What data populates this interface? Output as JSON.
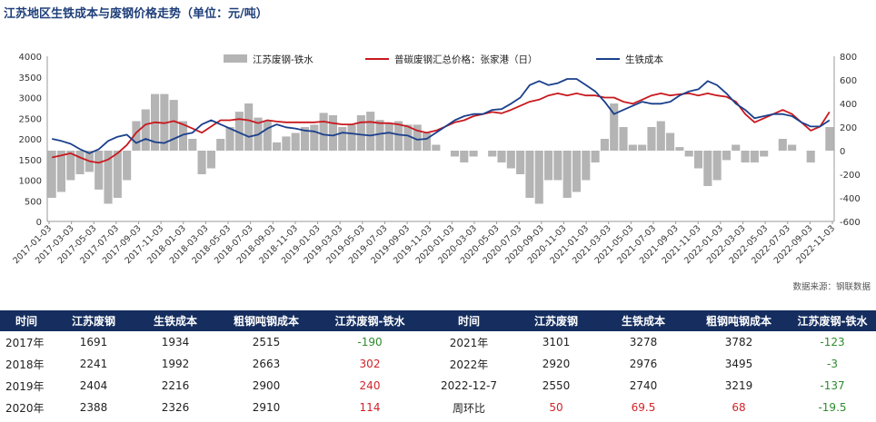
{
  "title": "江苏地区生铁成本与废钢价格走势（单位：元/吨）",
  "source": "数据来源：钢联数据",
  "chart_data": {
    "type": "line",
    "legend": [
      "江苏废钢-铁水",
      "普碳废钢汇总价格：张家港（日）",
      "生铁成本"
    ],
    "colors": {
      "bar": "#b4b4b4",
      "scrap": "#c8191e",
      "pigiron": "#1a3f8c"
    },
    "ylim_left": [
      0,
      4000
    ],
    "yticks_left": [
      "0",
      "500",
      "1000",
      "1500",
      "2000",
      "2500",
      "3000",
      "3500",
      "4000"
    ],
    "ylim_right": [
      -600,
      800
    ],
    "yticks_right": [
      "-600",
      "-400",
      "-200",
      "0",
      "200",
      "400",
      "600",
      "800"
    ],
    "xticks": [
      "2017-01-03",
      "2017-03-03",
      "2017-05-03",
      "2017-07-03",
      "2017-09-03",
      "2017-11-03",
      "2018-01-03",
      "2018-03-03",
      "2018-05-03",
      "2018-07-03",
      "2018-09-03",
      "2018-11-03",
      "2019-01-03",
      "2019-03-03",
      "2019-05-03",
      "2019-07-03",
      "2019-09-03",
      "2019-11-03",
      "2020-01-03",
      "2020-03-03",
      "2020-05-03",
      "2020-07-03",
      "2020-09-03",
      "2020-11-03",
      "2021-01-03",
      "2021-03-03",
      "2021-05-03",
      "2021-07-03",
      "2021-09-03",
      "2021-11-03",
      "2022-01-03",
      "2022-03-03",
      "2022-05-03",
      "2022-07-03",
      "2022-09-03",
      "2022-11-03"
    ],
    "series": [
      {
        "name": "普碳废钢汇总价格：张家港（日）",
        "axis": "left",
        "values": [
          1550,
          1600,
          1650,
          1550,
          1460,
          1420,
          1500,
          1650,
          1850,
          2150,
          2350,
          2400,
          2380,
          2430,
          2350,
          2250,
          2150,
          2300,
          2450,
          2450,
          2480,
          2450,
          2380,
          2450,
          2420,
          2400,
          2400,
          2400,
          2400,
          2420,
          2380,
          2350,
          2350,
          2400,
          2410,
          2380,
          2380,
          2350,
          2300,
          2200,
          2150,
          2200,
          2300,
          2400,
          2450,
          2550,
          2600,
          2650,
          2620,
          2700,
          2800,
          2900,
          2950,
          3050,
          3100,
          3050,
          3100,
          3050,
          3050,
          3000,
          3000,
          2900,
          2850,
          2950,
          3050,
          3100,
          3050,
          3080,
          3100,
          3050,
          3100,
          3050,
          3020,
          2900,
          2600,
          2400,
          2500,
          2600,
          2700,
          2600,
          2400,
          2200,
          2300,
          2650
        ]
      },
      {
        "name": "生铁成本",
        "axis": "left",
        "values": [
          2000,
          1950,
          1880,
          1750,
          1650,
          1750,
          1950,
          2050,
          2100,
          1900,
          2000,
          1920,
          1900,
          2000,
          2100,
          2150,
          2350,
          2450,
          2350,
          2250,
          2150,
          2050,
          2100,
          2250,
          2350,
          2280,
          2250,
          2200,
          2180,
          2100,
          2080,
          2150,
          2130,
          2100,
          2080,
          2120,
          2150,
          2100,
          2080,
          1980,
          2000,
          2150,
          2300,
          2450,
          2550,
          2600,
          2600,
          2700,
          2720,
          2850,
          3000,
          3300,
          3400,
          3300,
          3350,
          3450,
          3450,
          3300,
          3150,
          2900,
          2600,
          2700,
          2800,
          2900,
          2850,
          2850,
          2900,
          3050,
          3150,
          3200,
          3400,
          3300,
          3100,
          2850,
          2700,
          2500,
          2550,
          2600,
          2600,
          2550,
          2400,
          2300,
          2300,
          2450
        ]
      },
      {
        "name": "江苏废钢-铁水",
        "axis": "right",
        "values": [
          -400,
          -350,
          -250,
          -200,
          -180,
          -330,
          -450,
          -400,
          -250,
          250,
          350,
          480,
          480,
          430,
          250,
          100,
          -200,
          -150,
          100,
          200,
          330,
          400,
          280,
          250,
          70,
          120,
          150,
          200,
          220,
          320,
          300,
          200,
          220,
          300,
          330,
          260,
          230,
          250,
          220,
          220,
          150,
          50,
          0,
          -50,
          -100,
          -50,
          0,
          -50,
          -100,
          -150,
          -200,
          -400,
          -450,
          -250,
          -250,
          -400,
          -350,
          -250,
          -100,
          100,
          400,
          200,
          50,
          50,
          200,
          250,
          150,
          30,
          -50,
          -150,
          -300,
          -250,
          -80,
          50,
          -100,
          -100,
          -50,
          0,
          100,
          50,
          0,
          -100,
          0,
          200
        ]
      }
    ]
  },
  "table": {
    "headers": [
      "时间",
      "江苏废钢",
      "生铁成本",
      "粗钢吨钢成本",
      "江苏废钢-铁水",
      "时间",
      "江苏废钢",
      "生铁成本",
      "粗钢吨钢成本",
      "江苏废钢-铁水"
    ],
    "rows": [
      [
        "2017年",
        "1691",
        "1934",
        "2515",
        "-190",
        "2021年",
        "3101",
        "3278",
        "3782",
        "-123"
      ],
      [
        "2018年",
        "2241",
        "1992",
        "2663",
        "302",
        "2022年",
        "2920",
        "2976",
        "3495",
        "-3"
      ],
      [
        "2019年",
        "2404",
        "2216",
        "2900",
        "240",
        "2022-12-7",
        "2550",
        "2740",
        "3219",
        "-137"
      ],
      [
        "2020年",
        "2388",
        "2326",
        "2910",
        "114",
        "周环比",
        "50",
        "69.5",
        "68",
        "-19.5"
      ]
    ]
  }
}
